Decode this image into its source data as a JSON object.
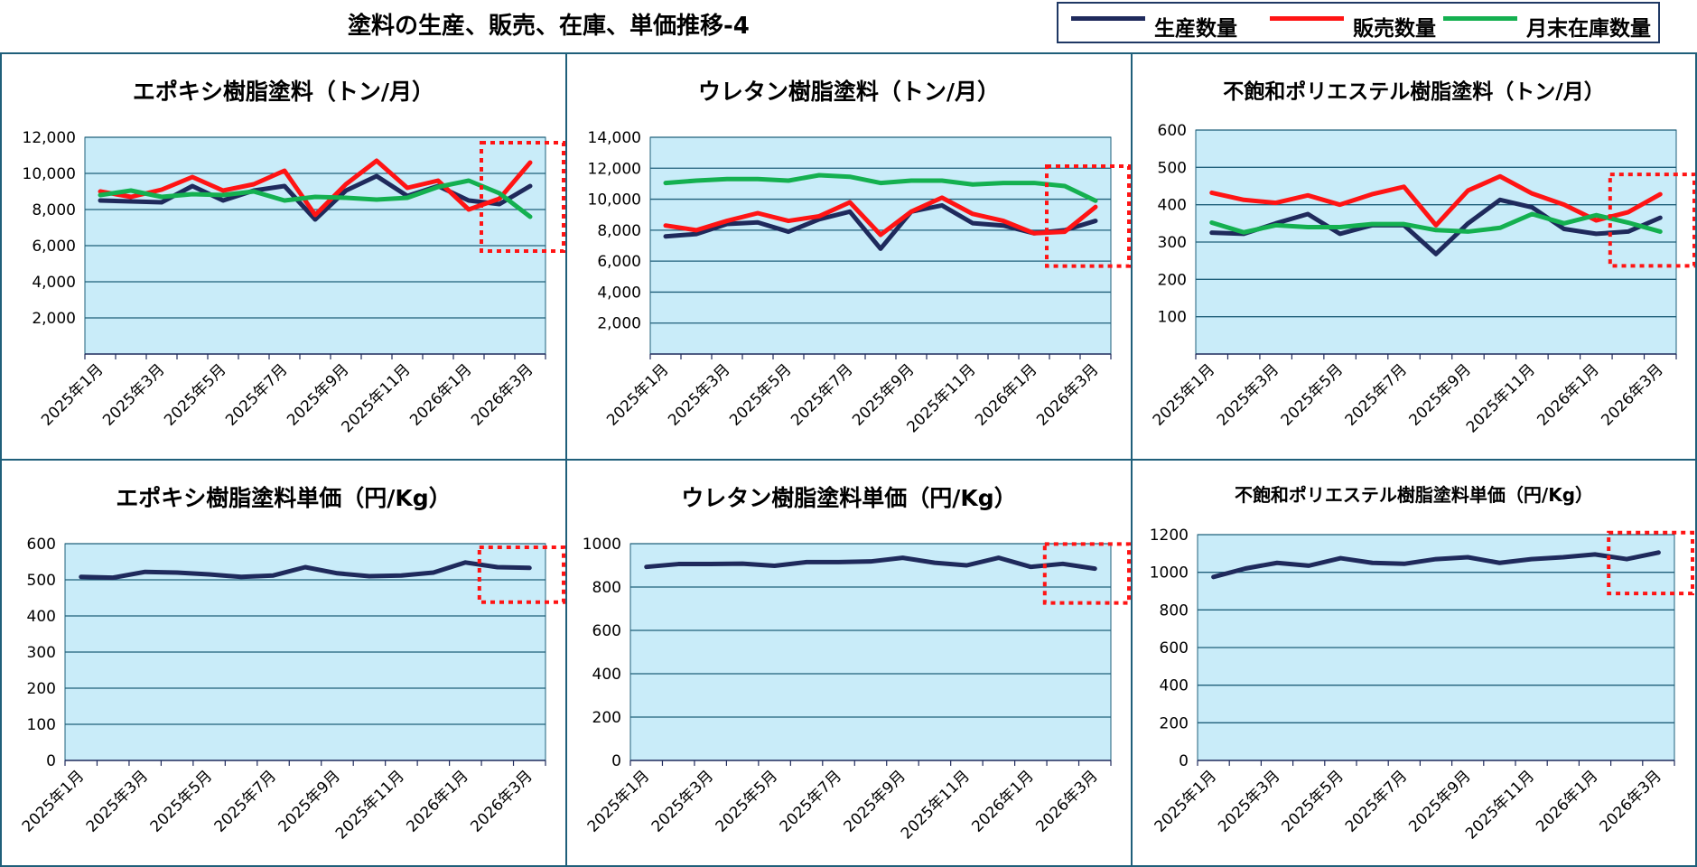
{
  "page": {
    "title": "塗料の生産、販売、在庫、単価推移-4",
    "legend": [
      {
        "label": "生産数量",
        "color": "#1f2a5c"
      },
      {
        "label": "販売数量",
        "color": "#ff1414"
      },
      {
        "label": "月末在庫数量",
        "color": "#14b050"
      }
    ],
    "colors": {
      "plot_bg": "#c9ecf9",
      "grid": "#1f5f7a",
      "highlight": "#ff1414",
      "frame": "#1f5f7a"
    }
  },
  "chart_data": [
    {
      "type": "line",
      "title": "エポキシ樹脂塗料（トン/月）",
      "categories": [
        "2025年1月",
        "2025年2月",
        "2025年3月",
        "2025年4月",
        "2025年5月",
        "2025年6月",
        "2025年7月",
        "2025年8月",
        "2025年9月",
        "2025年10月",
        "2025年11月",
        "2025年12月",
        "2026年1月",
        "2026年2月",
        "2026年3月"
      ],
      "tick_labels": [
        "2025年1月",
        "2025年3月",
        "2025年5月",
        "2025年7月",
        "2025年9月",
        "2025年11月",
        "2026年1月",
        "2026年3月"
      ],
      "y_ticks": [
        "2,000",
        "4,000",
        "6,000",
        "8,000",
        "10,000",
        "12,000"
      ],
      "ylim": [
        0,
        12000
      ],
      "grid": true,
      "highlight_last": true,
      "series": [
        {
          "name": "生産数量",
          "values": [
            8500,
            8450,
            8400,
            9300,
            8500,
            9050,
            9300,
            7450,
            9050,
            9850,
            8750,
            9300,
            8500,
            8300,
            9300
          ]
        },
        {
          "name": "販売数量",
          "values": [
            9000,
            8700,
            9100,
            9800,
            9050,
            9400,
            10150,
            7700,
            9400,
            10700,
            9200,
            9600,
            8000,
            8600,
            10600
          ]
        },
        {
          "name": "月末在庫数量",
          "values": [
            8800,
            9050,
            8700,
            8850,
            8800,
            9000,
            8500,
            8700,
            8650,
            8550,
            8650,
            9250,
            9600,
            8900,
            7600
          ]
        }
      ]
    },
    {
      "type": "line",
      "title": "ウレタン樹脂塗料（トン/月）",
      "categories": [
        "2025年1月",
        "2025年2月",
        "2025年3月",
        "2025年4月",
        "2025年5月",
        "2025年6月",
        "2025年7月",
        "2025年8月",
        "2025年9月",
        "2025年10月",
        "2025年11月",
        "2025年12月",
        "2026年1月",
        "2026年2月",
        "2026年3月"
      ],
      "tick_labels": [
        "2025年1月",
        "2025年3月",
        "2025年5月",
        "2025年7月",
        "2025年9月",
        "2025年11月",
        "2026年1月",
        "2026年3月"
      ],
      "y_ticks": [
        "2,000",
        "4,000",
        "6,000",
        "8,000",
        "10,000",
        "12,000",
        "14,000"
      ],
      "ylim": [
        0,
        14000
      ],
      "grid": true,
      "highlight_last": true,
      "series": [
        {
          "name": "生産数量",
          "values": [
            7600,
            7750,
            8400,
            8500,
            7900,
            8700,
            9200,
            6800,
            9200,
            9600,
            8450,
            8300,
            7800,
            8000,
            8600
          ]
        },
        {
          "name": "販売数量",
          "values": [
            8300,
            8000,
            8600,
            9100,
            8600,
            8900,
            9800,
            7700,
            9200,
            10100,
            9050,
            8600,
            7800,
            7900,
            9500
          ]
        },
        {
          "name": "月末在庫数量",
          "values": [
            11050,
            11200,
            11300,
            11300,
            11200,
            11550,
            11450,
            11050,
            11200,
            11200,
            10950,
            11050,
            11050,
            10850,
            9900
          ]
        }
      ]
    },
    {
      "type": "line",
      "title": "不飽和ポリエステル樹脂塗料（トン/月）",
      "categories": [
        "2025年1月",
        "2025年2月",
        "2025年3月",
        "2025年4月",
        "2025年5月",
        "2025年6月",
        "2025年7月",
        "2025年8月",
        "2025年9月",
        "2025年10月",
        "2025年11月",
        "2025年12月",
        "2026年1月",
        "2026年2月",
        "2026年3月"
      ],
      "tick_labels": [
        "2025年1月",
        "2025年3月",
        "2025年5月",
        "2025年7月",
        "2025年9月",
        "2025年11月",
        "2026年1月",
        "2026年3月"
      ],
      "y_ticks": [
        "100",
        "200",
        "300",
        "400",
        "500",
        "600"
      ],
      "ylim": [
        0,
        600
      ],
      "grid": true,
      "highlight_last": true,
      "series": [
        {
          "name": "生産数量",
          "values": [
            325,
            322,
            350,
            375,
            322,
            345,
            345,
            268,
            350,
            413,
            393,
            335,
            322,
            328,
            365
          ]
        },
        {
          "name": "販売数量",
          "values": [
            432,
            413,
            405,
            425,
            400,
            428,
            448,
            345,
            438,
            476,
            430,
            400,
            358,
            380,
            428
          ]
        },
        {
          "name": "月末在庫数量",
          "values": [
            352,
            326,
            345,
            340,
            340,
            348,
            348,
            332,
            328,
            338,
            375,
            350,
            372,
            352,
            328
          ]
        }
      ]
    },
    {
      "type": "line",
      "title": "エポキシ樹脂塗料単価（円/Kg）",
      "categories": [
        "2025年1月",
        "2025年2月",
        "2025年3月",
        "2025年4月",
        "2025年5月",
        "2025年6月",
        "2025年7月",
        "2025年8月",
        "2025年9月",
        "2025年10月",
        "2025年11月",
        "2025年12月",
        "2026年1月",
        "2026年2月",
        "2026年3月"
      ],
      "tick_labels": [
        "2025年1月",
        "2025年3月",
        "2025年5月",
        "2025年7月",
        "2025年9月",
        "2025年11月",
        "2026年1月",
        "2026年3月"
      ],
      "y_ticks": [
        "0",
        "100",
        "200",
        "300",
        "400",
        "500",
        "600"
      ],
      "ylim": [
        0,
        600
      ],
      "grid": true,
      "highlight_last": true,
      "series": [
        {
          "name": "生産数量",
          "values": [
            508,
            506,
            522,
            520,
            515,
            508,
            512,
            535,
            518,
            510,
            512,
            520,
            548,
            535,
            533
          ]
        }
      ]
    },
    {
      "type": "line",
      "title": "ウレタン樹脂塗料単価（円/Kg）",
      "categories": [
        "2025年1月",
        "2025年2月",
        "2025年3月",
        "2025年4月",
        "2025年5月",
        "2025年6月",
        "2025年7月",
        "2025年8月",
        "2025年9月",
        "2025年10月",
        "2025年11月",
        "2025年12月",
        "2026年1月",
        "2026年2月",
        "2026年3月"
      ],
      "tick_labels": [
        "2025年1月",
        "2025年3月",
        "2025年5月",
        "2025年7月",
        "2025年9月",
        "2025年11月",
        "2026年1月",
        "2026年3月"
      ],
      "y_ticks": [
        "0",
        "200",
        "400",
        "600",
        "800",
        "1000"
      ],
      "ylim": [
        0,
        1000
      ],
      "grid": true,
      "highlight_last": true,
      "series": [
        {
          "name": "生産数量",
          "values": [
            893,
            906,
            906,
            908,
            898,
            915,
            915,
            918,
            935,
            912,
            900,
            935,
            893,
            907,
            885
          ]
        }
      ]
    },
    {
      "type": "line",
      "title": "不飽和ポリエステル樹脂塗料単価（円/Kg）",
      "categories": [
        "2025年1月",
        "2025年2月",
        "2025年3月",
        "2025年4月",
        "2025年5月",
        "2025年6月",
        "2025年7月",
        "2025年8月",
        "2025年9月",
        "2025年10月",
        "2025年11月",
        "2025年12月",
        "2026年1月",
        "2026年2月",
        "2026年3月"
      ],
      "tick_labels": [
        "2025年1月",
        "2025年3月",
        "2025年5月",
        "2025年7月",
        "2025年9月",
        "2025年11月",
        "2026年1月",
        "2026年3月"
      ],
      "y_ticks": [
        "0",
        "200",
        "400",
        "600",
        "800",
        "1000",
        "1200"
      ],
      "ylim": [
        0,
        1200
      ],
      "grid": true,
      "highlight_last": true,
      "series": [
        {
          "name": "生産数量",
          "values": [
            975,
            1020,
            1050,
            1035,
            1075,
            1050,
            1045,
            1070,
            1080,
            1050,
            1070,
            1080,
            1095,
            1070,
            1105
          ]
        }
      ]
    }
  ]
}
